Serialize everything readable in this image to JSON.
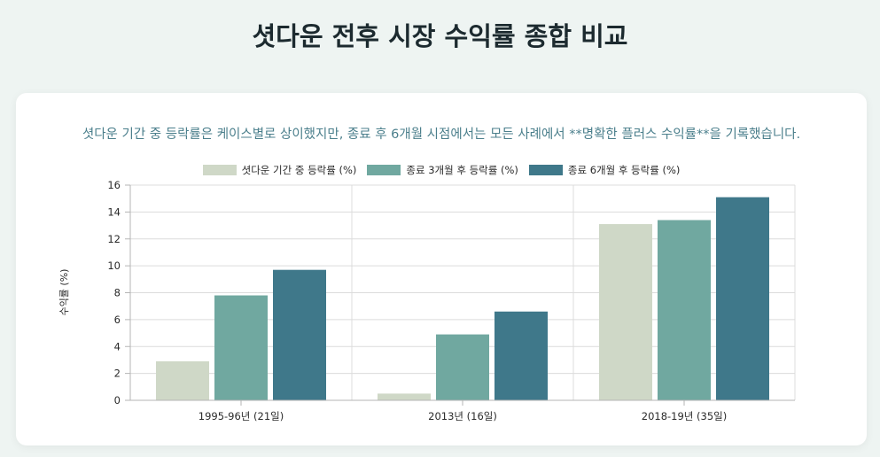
{
  "page": {
    "title": "셧다운 전후 시장 수익률 종합 비교"
  },
  "chart_data": {
    "type": "bar",
    "title": "셧다운 기간 중 등락률은 케이스별로 상이했지만, 종료 후 6개월 시점에서는 모든 사례에서 **명확한 플러스 수익률**을 기록했습니다.",
    "xlabel": "",
    "ylabel": "수익률 (%)",
    "ylim": [
      0,
      16
    ],
    "yticks": [
      0,
      2,
      4,
      6,
      8,
      10,
      12,
      14,
      16
    ],
    "grid": true,
    "legend_position": "top-center",
    "categories": [
      "1995-96년 (21일)",
      "2013년 (16일)",
      "2018-19년 (35일)"
    ],
    "series": [
      {
        "name": "셧다운 기간 중 등락률 (%)",
        "color": "#cfd8c7",
        "values": [
          2.9,
          0.5,
          13.1
        ]
      },
      {
        "name": "종료 3개월 후 등락률 (%)",
        "color": "#70a8a0",
        "values": [
          7.8,
          4.9,
          13.4
        ]
      },
      {
        "name": "종료 6개월 후 등락률 (%)",
        "color": "#3f788a",
        "values": [
          9.7,
          6.6,
          15.1
        ]
      }
    ]
  }
}
